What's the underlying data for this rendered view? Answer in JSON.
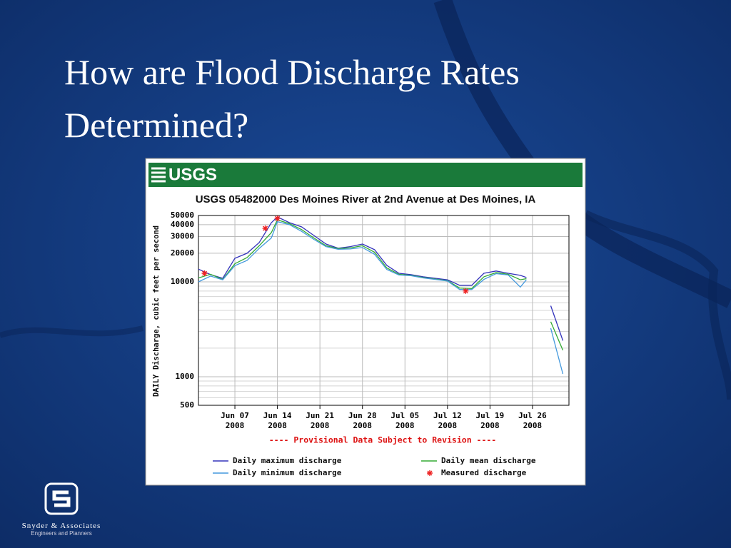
{
  "slide": {
    "title": "How are Flood Discharge Rates Determined?",
    "logo_name": "Snyder & Associates",
    "logo_tagline": "Engineers and Planners"
  },
  "chart_data": {
    "type": "line",
    "agency": "USGS",
    "title": "USGS 05482000 Des Moines River at 2nd Avenue at Des Moines, IA",
    "y_label": "DAILY Discharge, cubic feet per second",
    "note": "---- Provisional Data Subject to Revision ----",
    "log_y": true,
    "grid": true,
    "ylim": [
      500,
      50000
    ],
    "yticks": [
      500,
      1000,
      10000,
      20000,
      30000,
      40000,
      50000
    ],
    "ygrid": [
      600,
      700,
      800,
      900,
      2000,
      3000,
      4000,
      5000,
      6000,
      7000,
      8000,
      9000
    ],
    "xlim": [
      "2008-06-01",
      "2008-08-01"
    ],
    "xticks": [
      {
        "value": "2008-06-07",
        "label": "Jun 07\n2008"
      },
      {
        "value": "2008-06-14",
        "label": "Jun 14\n2008"
      },
      {
        "value": "2008-06-21",
        "label": "Jun 21\n2008"
      },
      {
        "value": "2008-06-28",
        "label": "Jun 28\n2008"
      },
      {
        "value": "2008-07-05",
        "label": "Jul 05\n2008"
      },
      {
        "value": "2008-07-12",
        "label": "Jul 12\n2008"
      },
      {
        "value": "2008-07-19",
        "label": "Jul 19\n2008"
      },
      {
        "value": "2008-07-26",
        "label": "Jul 26\n2008"
      }
    ],
    "x": [
      "2008-06-01",
      "2008-06-03",
      "2008-06-05",
      "2008-06-07",
      "2008-06-09",
      "2008-06-11",
      "2008-06-13",
      "2008-06-14",
      "2008-06-16",
      "2008-06-18",
      "2008-06-20",
      "2008-06-22",
      "2008-06-24",
      "2008-06-26",
      "2008-06-28",
      "2008-06-30",
      "2008-07-02",
      "2008-07-04",
      "2008-07-06",
      "2008-07-08",
      "2008-07-10",
      "2008-07-12",
      "2008-07-14",
      "2008-07-16",
      "2008-07-18",
      "2008-07-20",
      "2008-07-22",
      "2008-07-24",
      "2008-07-25",
      "2008-07-27",
      "2008-07-29",
      "2008-07-31"
    ],
    "series": [
      {
        "name": "Daily maximum discharge",
        "color": "#3333bb",
        "values": [
          13600,
          11900,
          10900,
          17700,
          20000,
          25900,
          42000,
          48300,
          42000,
          37900,
          30800,
          25000,
          22600,
          23500,
          25000,
          21800,
          14900,
          12300,
          11900,
          11300,
          10900,
          10500,
          9200,
          9200,
          12300,
          13000,
          12300,
          11700,
          11100,
          null,
          5600,
          2400
        ]
      },
      {
        "name": "Daily mean discharge",
        "color": "#33aa33",
        "values": [
          11000,
          12000,
          10600,
          15500,
          18000,
          24000,
          33000,
          45000,
          41000,
          35500,
          29000,
          24000,
          22400,
          22800,
          24000,
          20500,
          14000,
          12000,
          11700,
          11100,
          10700,
          10300,
          8600,
          8500,
          11300,
          12500,
          12000,
          10500,
          10800,
          null,
          3800,
          1900
        ]
      },
      {
        "name": "Daily minimum discharge",
        "color": "#4499dd",
        "values": [
          10000,
          11500,
          10500,
          14800,
          16800,
          22500,
          29000,
          43000,
          40000,
          34000,
          28000,
          23500,
          22000,
          22200,
          23000,
          19500,
          13500,
          11800,
          11600,
          11000,
          10600,
          10200,
          8300,
          8300,
          10600,
          12200,
          11800,
          8800,
          10500,
          null,
          3240,
          1070
        ]
      },
      {
        "name": "Measured discharge",
        "color": "#ee2222",
        "x": [
          "2008-06-02",
          "2008-06-12",
          "2008-06-14",
          "2008-07-15"
        ],
        "values": [
          12300,
          36600,
          46600,
          8000
        ]
      }
    ]
  }
}
